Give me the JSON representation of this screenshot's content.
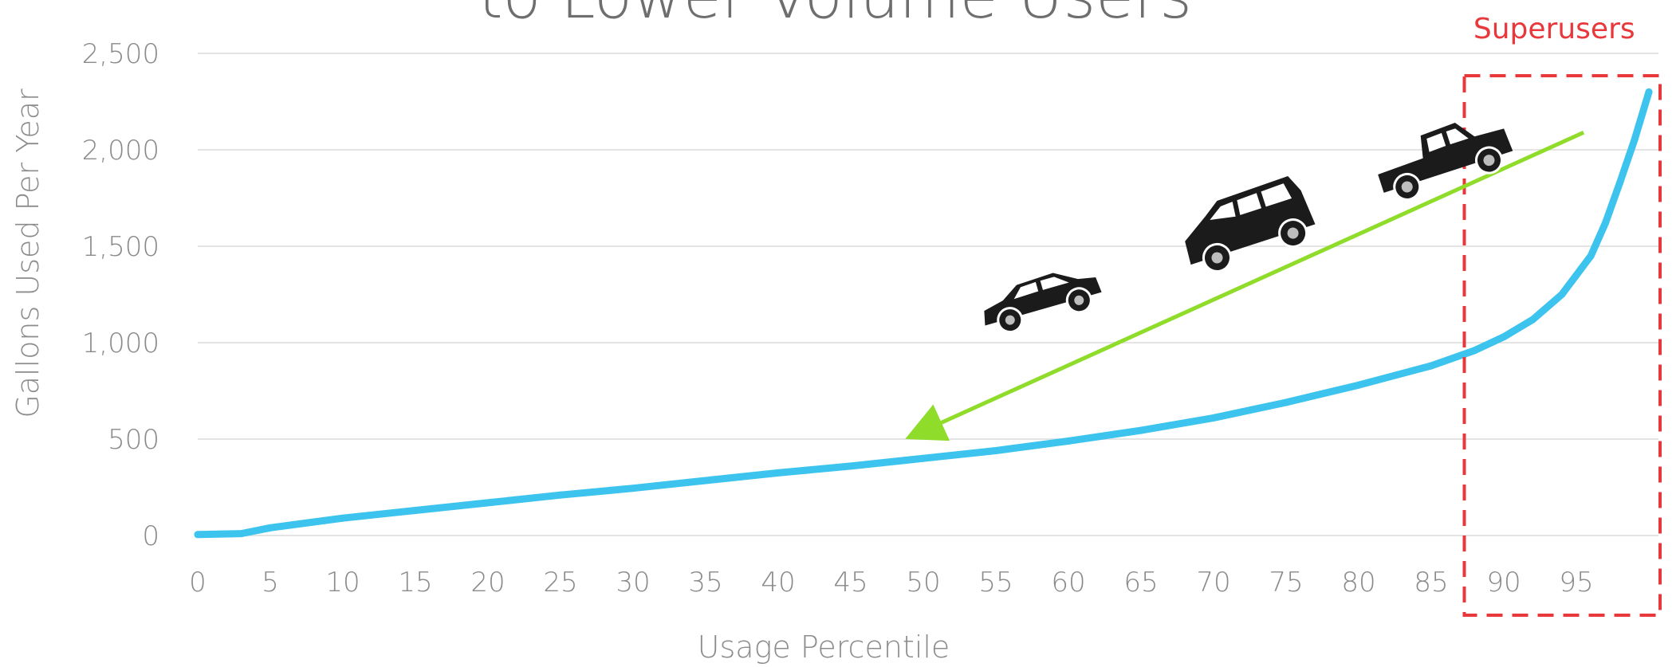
{
  "chart_data": {
    "type": "line",
    "title": "to Lower Volume Users",
    "xlabel": "Usage Percentile",
    "ylabel": "Gallons Used Per Year",
    "xlim": [
      0,
      100
    ],
    "ylim": [
      0,
      2500
    ],
    "x_ticks": [
      "0",
      "5",
      "10",
      "15",
      "20",
      "25",
      "30",
      "35",
      "40",
      "45",
      "50",
      "55",
      "60",
      "65",
      "70",
      "75",
      "80",
      "85",
      "90",
      "95"
    ],
    "y_ticks": [
      "0",
      "500",
      "1,000",
      "1,500",
      "2,000",
      "2,500"
    ],
    "grid": true,
    "series": [
      {
        "color": "#3cc4ee",
        "x": [
          0,
          3,
          5,
          10,
          15,
          20,
          25,
          30,
          35,
          40,
          45,
          50,
          55,
          60,
          65,
          70,
          75,
          80,
          85,
          88,
          90,
          92,
          94,
          96,
          97,
          98,
          99,
          100
        ],
        "y": [
          5,
          10,
          40,
          90,
          130,
          170,
          210,
          245,
          285,
          325,
          360,
          400,
          440,
          490,
          545,
          610,
          690,
          780,
          880,
          960,
          1030,
          1120,
          1250,
          1450,
          1620,
          1830,
          2050,
          2300
        ]
      }
    ],
    "annotations": {
      "superusers": {
        "label": "Superusers",
        "x_range": [
          87.5,
          100
        ],
        "color": "#e8383b"
      },
      "arrow": {
        "from": [
          95.5,
          2090
        ],
        "to": [
          50.5,
          560
        ],
        "color": "#8fdc2b"
      },
      "vehicles": [
        "sedan-icon",
        "minivan-icon",
        "pickup-truck-icon"
      ]
    }
  }
}
